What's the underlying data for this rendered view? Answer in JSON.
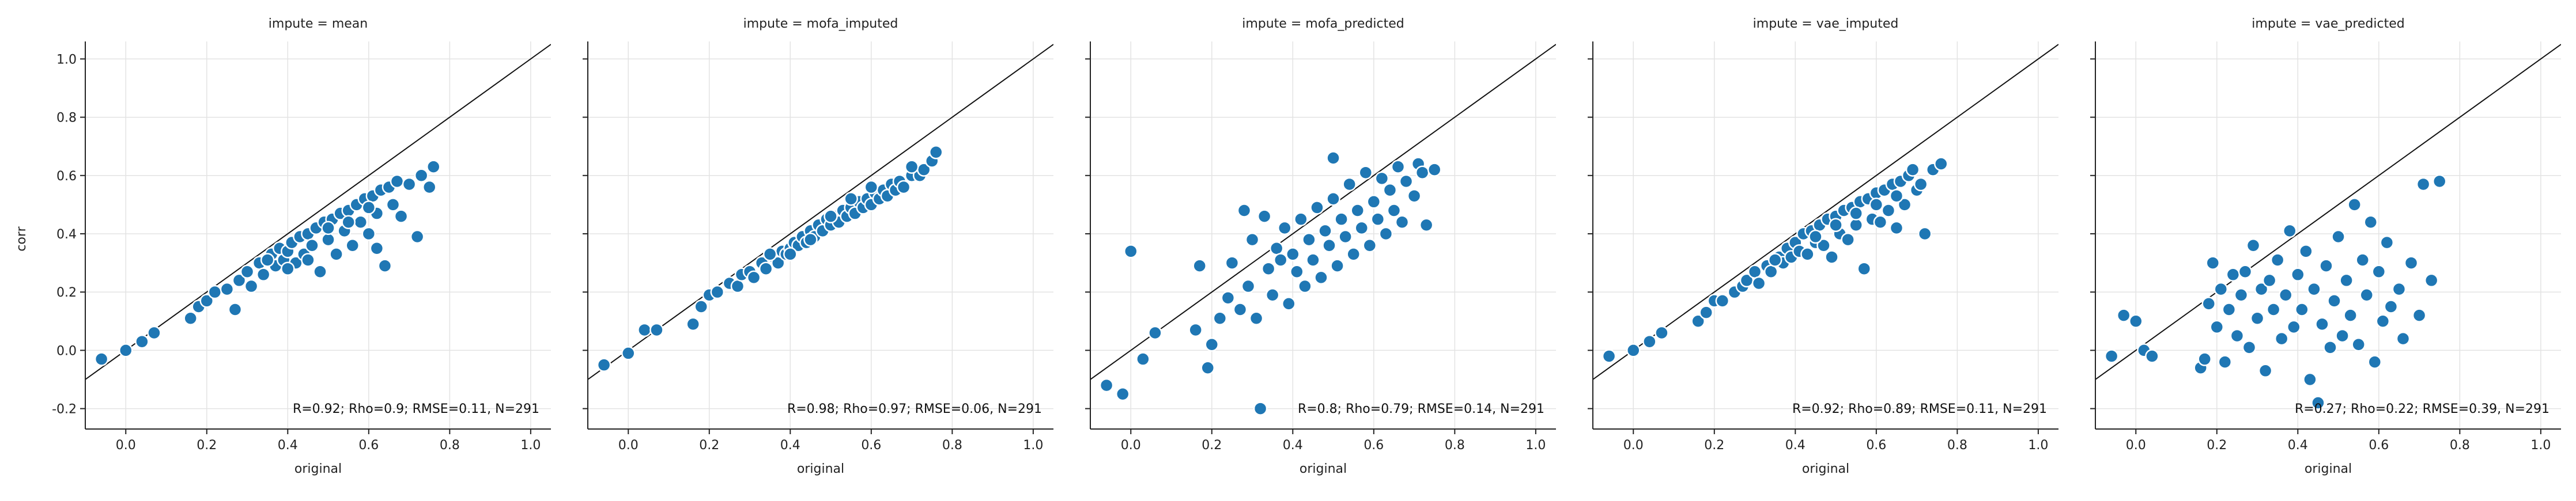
{
  "chart_data": {
    "type": "scatter",
    "facet_variable": "impute",
    "xlabel": "original",
    "ylabel": "corr",
    "xlim": [
      -0.1,
      1.05
    ],
    "ylim": [
      -0.27,
      1.06
    ],
    "xticks": [
      "0.0",
      "0.2",
      "0.4",
      "0.6",
      "0.8",
      "1.0"
    ],
    "yticks": [
      "-0.2",
      "0.0",
      "0.2",
      "0.4",
      "0.6",
      "0.8",
      "1.0"
    ],
    "xtick_values": [
      0.0,
      0.2,
      0.4,
      0.6,
      0.8,
      1.0
    ],
    "ytick_values": [
      -0.2,
      0.0,
      0.2,
      0.4,
      0.6,
      0.8,
      1.0
    ],
    "grid": true,
    "reference_line": "y = x",
    "point_color": "#1f77b4",
    "panels": [
      {
        "title": "impute = mean",
        "annotation": "R=0.92; Rho=0.9; RMSE=0.11, N=291",
        "points": [
          [
            -0.06,
            -0.03
          ],
          [
            0.0,
            0.0
          ],
          [
            0.04,
            0.03
          ],
          [
            0.07,
            0.06
          ],
          [
            0.16,
            0.11
          ],
          [
            0.18,
            0.15
          ],
          [
            0.2,
            0.17
          ],
          [
            0.22,
            0.2
          ],
          [
            0.25,
            0.21
          ],
          [
            0.27,
            0.14
          ],
          [
            0.28,
            0.24
          ],
          [
            0.3,
            0.27
          ],
          [
            0.31,
            0.22
          ],
          [
            0.33,
            0.3
          ],
          [
            0.34,
            0.26
          ],
          [
            0.36,
            0.33
          ],
          [
            0.37,
            0.29
          ],
          [
            0.38,
            0.35
          ],
          [
            0.39,
            0.31
          ],
          [
            0.4,
            0.34
          ],
          [
            0.41,
            0.37
          ],
          [
            0.42,
            0.3
          ],
          [
            0.43,
            0.39
          ],
          [
            0.44,
            0.33
          ],
          [
            0.45,
            0.4
          ],
          [
            0.46,
            0.36
          ],
          [
            0.47,
            0.42
          ],
          [
            0.48,
            0.27
          ],
          [
            0.49,
            0.44
          ],
          [
            0.5,
            0.38
          ],
          [
            0.51,
            0.45
          ],
          [
            0.52,
            0.33
          ],
          [
            0.53,
            0.47
          ],
          [
            0.54,
            0.41
          ],
          [
            0.55,
            0.48
          ],
          [
            0.56,
            0.36
          ],
          [
            0.57,
            0.5
          ],
          [
            0.58,
            0.44
          ],
          [
            0.59,
            0.52
          ],
          [
            0.6,
            0.4
          ],
          [
            0.61,
            0.53
          ],
          [
            0.62,
            0.47
          ],
          [
            0.63,
            0.55
          ],
          [
            0.64,
            0.29
          ],
          [
            0.65,
            0.56
          ],
          [
            0.66,
            0.5
          ],
          [
            0.67,
            0.58
          ],
          [
            0.68,
            0.46
          ],
          [
            0.7,
            0.57
          ],
          [
            0.72,
            0.39
          ],
          [
            0.73,
            0.6
          ],
          [
            0.75,
            0.56
          ],
          [
            0.76,
            0.63
          ],
          [
            0.35,
            0.31
          ],
          [
            0.4,
            0.28
          ],
          [
            0.45,
            0.31
          ],
          [
            0.5,
            0.42
          ],
          [
            0.55,
            0.44
          ],
          [
            0.6,
            0.49
          ],
          [
            0.62,
            0.35
          ]
        ]
      },
      {
        "title": "impute = mofa_imputed",
        "annotation": "R=0.98; Rho=0.97; RMSE=0.06, N=291",
        "points": [
          [
            -0.06,
            -0.05
          ],
          [
            0.0,
            -0.01
          ],
          [
            0.04,
            0.07
          ],
          [
            0.07,
            0.07
          ],
          [
            0.16,
            0.09
          ],
          [
            0.18,
            0.15
          ],
          [
            0.2,
            0.19
          ],
          [
            0.22,
            0.2
          ],
          [
            0.25,
            0.23
          ],
          [
            0.27,
            0.22
          ],
          [
            0.28,
            0.26
          ],
          [
            0.3,
            0.27
          ],
          [
            0.31,
            0.25
          ],
          [
            0.33,
            0.3
          ],
          [
            0.34,
            0.28
          ],
          [
            0.36,
            0.32
          ],
          [
            0.37,
            0.3
          ],
          [
            0.38,
            0.34
          ],
          [
            0.39,
            0.33
          ],
          [
            0.4,
            0.35
          ],
          [
            0.41,
            0.37
          ],
          [
            0.42,
            0.36
          ],
          [
            0.43,
            0.39
          ],
          [
            0.44,
            0.37
          ],
          [
            0.45,
            0.41
          ],
          [
            0.46,
            0.39
          ],
          [
            0.47,
            0.43
          ],
          [
            0.48,
            0.41
          ],
          [
            0.49,
            0.45
          ],
          [
            0.5,
            0.43
          ],
          [
            0.51,
            0.46
          ],
          [
            0.52,
            0.44
          ],
          [
            0.53,
            0.48
          ],
          [
            0.54,
            0.46
          ],
          [
            0.55,
            0.49
          ],
          [
            0.56,
            0.47
          ],
          [
            0.57,
            0.51
          ],
          [
            0.58,
            0.49
          ],
          [
            0.59,
            0.52
          ],
          [
            0.6,
            0.5
          ],
          [
            0.61,
            0.54
          ],
          [
            0.62,
            0.52
          ],
          [
            0.63,
            0.55
          ],
          [
            0.64,
            0.53
          ],
          [
            0.65,
            0.57
          ],
          [
            0.66,
            0.55
          ],
          [
            0.67,
            0.58
          ],
          [
            0.68,
            0.56
          ],
          [
            0.7,
            0.6
          ],
          [
            0.72,
            0.6
          ],
          [
            0.73,
            0.62
          ],
          [
            0.75,
            0.65
          ],
          [
            0.76,
            0.68
          ],
          [
            0.35,
            0.33
          ],
          [
            0.4,
            0.33
          ],
          [
            0.45,
            0.38
          ],
          [
            0.5,
            0.46
          ],
          [
            0.55,
            0.52
          ],
          [
            0.6,
            0.56
          ],
          [
            0.7,
            0.63
          ]
        ]
      },
      {
        "title": "impute = mofa_predicted",
        "annotation": "R=0.8; Rho=0.79; RMSE=0.14, N=291",
        "points": [
          [
            -0.06,
            -0.12
          ],
          [
            -0.02,
            -0.15
          ],
          [
            0.0,
            0.34
          ],
          [
            0.03,
            -0.03
          ],
          [
            0.06,
            0.06
          ],
          [
            0.16,
            0.07
          ],
          [
            0.17,
            0.29
          ],
          [
            0.19,
            -0.06
          ],
          [
            0.2,
            0.02
          ],
          [
            0.22,
            0.11
          ],
          [
            0.24,
            0.18
          ],
          [
            0.25,
            0.3
          ],
          [
            0.27,
            0.14
          ],
          [
            0.28,
            0.48
          ],
          [
            0.29,
            0.22
          ],
          [
            0.3,
            0.38
          ],
          [
            0.31,
            0.11
          ],
          [
            0.32,
            -0.2
          ],
          [
            0.33,
            0.46
          ],
          [
            0.34,
            0.28
          ],
          [
            0.35,
            0.19
          ],
          [
            0.36,
            0.35
          ],
          [
            0.37,
            0.31
          ],
          [
            0.38,
            0.42
          ],
          [
            0.39,
            0.16
          ],
          [
            0.4,
            0.33
          ],
          [
            0.41,
            0.27
          ],
          [
            0.42,
            0.45
          ],
          [
            0.43,
            0.22
          ],
          [
            0.44,
            0.38
          ],
          [
            0.45,
            0.31
          ],
          [
            0.46,
            0.49
          ],
          [
            0.47,
            0.25
          ],
          [
            0.48,
            0.41
          ],
          [
            0.49,
            0.36
          ],
          [
            0.5,
            0.52
          ],
          [
            0.51,
            0.29
          ],
          [
            0.52,
            0.45
          ],
          [
            0.53,
            0.39
          ],
          [
            0.54,
            0.57
          ],
          [
            0.55,
            0.33
          ],
          [
            0.56,
            0.48
          ],
          [
            0.57,
            0.42
          ],
          [
            0.58,
            0.61
          ],
          [
            0.59,
            0.36
          ],
          [
            0.6,
            0.51
          ],
          [
            0.61,
            0.45
          ],
          [
            0.62,
            0.59
          ],
          [
            0.63,
            0.4
          ],
          [
            0.64,
            0.55
          ],
          [
            0.65,
            0.48
          ],
          [
            0.66,
            0.63
          ],
          [
            0.67,
            0.44
          ],
          [
            0.68,
            0.58
          ],
          [
            0.7,
            0.53
          ],
          [
            0.71,
            0.64
          ],
          [
            0.72,
            0.61
          ],
          [
            0.73,
            0.43
          ],
          [
            0.75,
            0.62
          ],
          [
            0.5,
            0.66
          ]
        ]
      },
      {
        "title": "impute = vae_imputed",
        "annotation": "R=0.92; Rho=0.89; RMSE=0.11, N=291",
        "points": [
          [
            -0.06,
            -0.02
          ],
          [
            0.0,
            0.0
          ],
          [
            0.04,
            0.03
          ],
          [
            0.07,
            0.06
          ],
          [
            0.16,
            0.1
          ],
          [
            0.18,
            0.13
          ],
          [
            0.2,
            0.17
          ],
          [
            0.22,
            0.17
          ],
          [
            0.25,
            0.2
          ],
          [
            0.27,
            0.22
          ],
          [
            0.28,
            0.24
          ],
          [
            0.3,
            0.27
          ],
          [
            0.31,
            0.23
          ],
          [
            0.33,
            0.29
          ],
          [
            0.34,
            0.27
          ],
          [
            0.36,
            0.32
          ],
          [
            0.37,
            0.3
          ],
          [
            0.38,
            0.35
          ],
          [
            0.39,
            0.32
          ],
          [
            0.4,
            0.37
          ],
          [
            0.41,
            0.34
          ],
          [
            0.42,
            0.4
          ],
          [
            0.43,
            0.33
          ],
          [
            0.44,
            0.41
          ],
          [
            0.45,
            0.37
          ],
          [
            0.46,
            0.43
          ],
          [
            0.47,
            0.36
          ],
          [
            0.48,
            0.45
          ],
          [
            0.49,
            0.32
          ],
          [
            0.5,
            0.46
          ],
          [
            0.51,
            0.4
          ],
          [
            0.52,
            0.48
          ],
          [
            0.53,
            0.38
          ],
          [
            0.54,
            0.49
          ],
          [
            0.55,
            0.43
          ],
          [
            0.56,
            0.51
          ],
          [
            0.57,
            0.28
          ],
          [
            0.58,
            0.52
          ],
          [
            0.59,
            0.45
          ],
          [
            0.6,
            0.54
          ],
          [
            0.61,
            0.44
          ],
          [
            0.62,
            0.55
          ],
          [
            0.63,
            0.48
          ],
          [
            0.64,
            0.57
          ],
          [
            0.65,
            0.42
          ],
          [
            0.66,
            0.58
          ],
          [
            0.67,
            0.5
          ],
          [
            0.68,
            0.6
          ],
          [
            0.69,
            0.62
          ],
          [
            0.7,
            0.55
          ],
          [
            0.71,
            0.57
          ],
          [
            0.72,
            0.4
          ],
          [
            0.74,
            0.62
          ],
          [
            0.76,
            0.64
          ],
          [
            0.35,
            0.31
          ],
          [
            0.45,
            0.39
          ],
          [
            0.5,
            0.43
          ],
          [
            0.6,
            0.5
          ],
          [
            0.65,
            0.53
          ],
          [
            0.55,
            0.47
          ]
        ]
      },
      {
        "title": "impute = vae_predicted",
        "annotation": "R=0.27; Rho=0.22; RMSE=0.39, N=291",
        "points": [
          [
            -0.06,
            -0.02
          ],
          [
            -0.03,
            0.12
          ],
          [
            0.0,
            0.1
          ],
          [
            0.02,
            0.0
          ],
          [
            0.04,
            -0.02
          ],
          [
            0.16,
            -0.06
          ],
          [
            0.17,
            -0.03
          ],
          [
            0.18,
            0.16
          ],
          [
            0.19,
            0.3
          ],
          [
            0.2,
            0.08
          ],
          [
            0.21,
            0.21
          ],
          [
            0.22,
            -0.04
          ],
          [
            0.23,
            0.14
          ],
          [
            0.24,
            0.26
          ],
          [
            0.25,
            0.05
          ],
          [
            0.26,
            0.19
          ],
          [
            0.27,
            0.27
          ],
          [
            0.28,
            0.01
          ],
          [
            0.29,
            0.36
          ],
          [
            0.3,
            0.11
          ],
          [
            0.31,
            0.21
          ],
          [
            0.32,
            -0.07
          ],
          [
            0.33,
            0.24
          ],
          [
            0.34,
            0.14
          ],
          [
            0.35,
            0.31
          ],
          [
            0.36,
            0.04
          ],
          [
            0.37,
            0.19
          ],
          [
            0.38,
            0.41
          ],
          [
            0.39,
            0.08
          ],
          [
            0.4,
            0.26
          ],
          [
            0.41,
            0.14
          ],
          [
            0.42,
            0.34
          ],
          [
            0.43,
            -0.1
          ],
          [
            0.44,
            0.21
          ],
          [
            0.45,
            -0.18
          ],
          [
            0.46,
            0.09
          ],
          [
            0.47,
            0.29
          ],
          [
            0.48,
            0.01
          ],
          [
            0.49,
            0.17
          ],
          [
            0.5,
            0.39
          ],
          [
            0.51,
            0.05
          ],
          [
            0.52,
            0.24
          ],
          [
            0.53,
            0.12
          ],
          [
            0.54,
            0.5
          ],
          [
            0.55,
            0.02
          ],
          [
            0.56,
            0.31
          ],
          [
            0.57,
            0.19
          ],
          [
            0.58,
            0.44
          ],
          [
            0.59,
            -0.04
          ],
          [
            0.6,
            0.27
          ],
          [
            0.61,
            0.1
          ],
          [
            0.62,
            0.37
          ],
          [
            0.63,
            0.15
          ],
          [
            0.65,
            0.21
          ],
          [
            0.66,
            0.04
          ],
          [
            0.68,
            0.3
          ],
          [
            0.7,
            0.12
          ],
          [
            0.71,
            0.57
          ],
          [
            0.73,
            0.24
          ],
          [
            0.75,
            0.58
          ]
        ]
      }
    ]
  }
}
